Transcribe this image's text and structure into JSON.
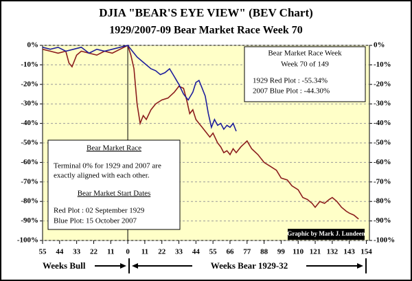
{
  "chart_data": {
    "type": "line",
    "title": "DJIA \"BEAR'S EYE VIEW\" (BEV Chart)",
    "subtitle": "1929/2007-09  Bear Market Race Week 70",
    "xlim": [
      -55,
      156
    ],
    "xticks": [
      {
        "value": -55,
        "label": "55"
      },
      {
        "value": -44,
        "label": "44"
      },
      {
        "value": -33,
        "label": "33"
      },
      {
        "value": -22,
        "label": "22"
      },
      {
        "value": -11,
        "label": "11"
      },
      0,
      11,
      22,
      33,
      44,
      55,
      66,
      77,
      88,
      99,
      110,
      121,
      132,
      143,
      154
    ],
    "ylim": [
      -100,
      0
    ],
    "yticks": [
      {
        "value": 0,
        "label": "0%"
      },
      {
        "value": -10,
        "label": "-10%"
      },
      {
        "value": -20,
        "label": "-20%"
      },
      {
        "value": -30,
        "label": "-30%"
      },
      {
        "value": -40,
        "label": "-40%"
      },
      {
        "value": -50,
        "label": "-50%"
      },
      {
        "value": -60,
        "label": "-60%"
      },
      {
        "value": -70,
        "label": "-70%"
      },
      {
        "value": -80,
        "label": "-80%"
      },
      {
        "value": -90,
        "label": "-90%"
      },
      {
        "value": -100,
        "label": "-100%"
      }
    ],
    "grid": true,
    "series": [
      {
        "color": "#8b1c1c",
        "x": [
          -55,
          -50,
          -45,
          -40,
          -38,
          -36,
          -33,
          -30,
          -25,
          -20,
          -15,
          -10,
          -5,
          0,
          2,
          4,
          6,
          8,
          10,
          12,
          15,
          18,
          22,
          26,
          30,
          33,
          36,
          38,
          40,
          42,
          44,
          46,
          48,
          50,
          53,
          55,
          58,
          60,
          62,
          64,
          66,
          68,
          70,
          73,
          77,
          80,
          84,
          88,
          92,
          96,
          99,
          103,
          106,
          110,
          113,
          116,
          119,
          121,
          124,
          127,
          130,
          132,
          135,
          138,
          141,
          143,
          146,
          149
        ],
        "values": [
          -2,
          -3,
          -4,
          -3,
          -9,
          -11,
          -5,
          -3,
          -4,
          -5,
          -3,
          -4,
          -2,
          0,
          -5,
          -12,
          -30,
          -40,
          -36,
          -38,
          -33,
          -30,
          -28,
          -27,
          -24,
          -21,
          -22,
          -28,
          -35,
          -33,
          -38,
          -40,
          -42,
          -44,
          -47,
          -45,
          -50,
          -52,
          -55,
          -54,
          -56,
          -53,
          -55,
          -52,
          -49,
          -53,
          -56,
          -60,
          -62,
          -64,
          -68,
          -69,
          -72,
          -74,
          -78,
          -79,
          -81,
          -83,
          -80,
          -81,
          -79,
          -78,
          -80,
          -83,
          -85,
          -86,
          -87,
          -89
        ]
      },
      {
        "color": "#1c1c9c",
        "x": [
          -55,
          -50,
          -45,
          -40,
          -35,
          -30,
          -25,
          -20,
          -15,
          -10,
          -5,
          0,
          3,
          6,
          9,
          12,
          15,
          18,
          21,
          24,
          27,
          30,
          33,
          36,
          39,
          42,
          44,
          46,
          48,
          50,
          52,
          54,
          56,
          58,
          60,
          62,
          64,
          66,
          68,
          70
        ],
        "values": [
          -1,
          -2,
          -1,
          -3,
          -2,
          -1,
          -4,
          -2,
          -3,
          -2,
          -1,
          0,
          -3,
          -6,
          -8,
          -10,
          -12,
          -13,
          -15,
          -14,
          -12,
          -16,
          -20,
          -25,
          -28,
          -24,
          -19,
          -18,
          -22,
          -26,
          -35,
          -42,
          -38,
          -41,
          -40,
          -43,
          -41,
          -42,
          -40,
          -44
        ]
      }
    ],
    "week_box": [
      "Bear Market Race Week",
      "Week 70 of 149",
      "1929 Red Plot  : -55.34%",
      "2007 Blue Plot : -44.30%"
    ],
    "info_box": {
      "heading": "Bear Market Race",
      "lines": [
        "Terminal 0% for 1929 and 2007 are",
        "exactly aligned with each other."
      ],
      "subheading": "Bear Market Start Dates",
      "dates": [
        "Red Plot :  02 September 1929",
        "Blue Plot:  15 October 2007"
      ]
    },
    "credit": "Graphic by Mark J. Lundeen",
    "x_labels": {
      "bull": "Weeks Bull",
      "bear": "Weeks Bear 1929-32"
    }
  }
}
